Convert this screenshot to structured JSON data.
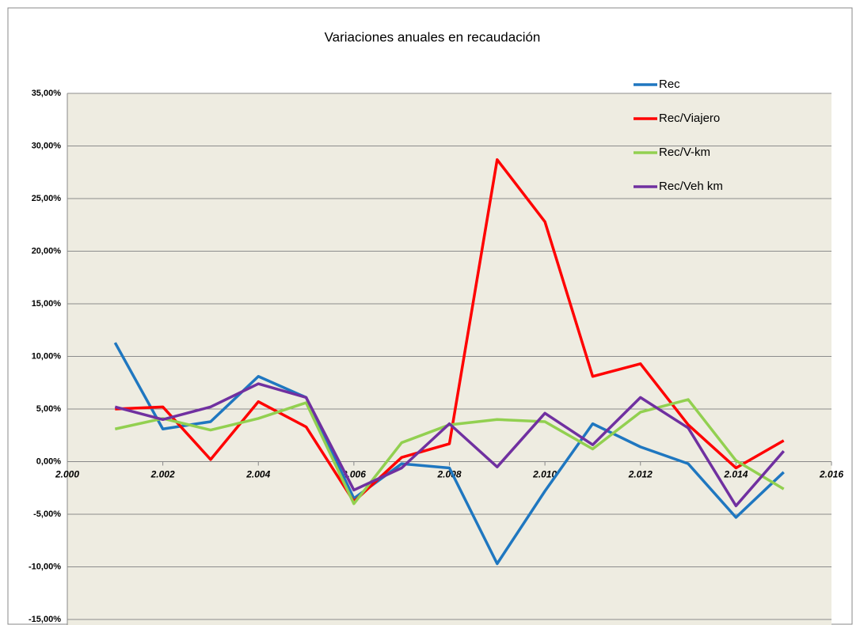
{
  "chart_data": {
    "type": "line",
    "title": "Variaciones anuales en recaudación",
    "x": [
      2001,
      2002,
      2003,
      2004,
      2005,
      2006,
      2007,
      2008,
      2009,
      2010,
      2011,
      2012,
      2013,
      2014,
      2015
    ],
    "series": [
      {
        "name": "Rec",
        "color": "#1f77c0",
        "values": [
          11.3,
          3.1,
          3.8,
          8.1,
          6.1,
          -3.5,
          -0.2,
          -0.6,
          -9.7,
          -2.8,
          3.6,
          1.4,
          -0.2,
          -5.3,
          -1.0
        ]
      },
      {
        "name": "Rec/Viajero",
        "color": "#ff0000",
        "values": [
          5.0,
          5.2,
          0.2,
          5.7,
          3.3,
          -3.8,
          0.4,
          1.7,
          28.7,
          22.8,
          8.1,
          9.3,
          3.5,
          -0.6,
          2.0
        ]
      },
      {
        "name": "Rec/V-km",
        "color": "#92d050",
        "values": [
          3.1,
          4.1,
          3.0,
          4.1,
          5.6,
          -4.0,
          1.8,
          3.5,
          4.0,
          3.8,
          1.2,
          4.7,
          5.9,
          0.1,
          -2.6
        ]
      },
      {
        "name": "Rec/Veh km",
        "color": "#7030a0",
        "values": [
          5.2,
          4.0,
          5.2,
          7.4,
          6.1,
          -2.7,
          -0.6,
          3.6,
          -0.5,
          4.6,
          1.6,
          6.1,
          3.2,
          -4.2,
          1.0
        ]
      }
    ],
    "xlim": [
      2000,
      2016
    ],
    "xticks": [
      {
        "value": 2000,
        "label": "2.000"
      },
      {
        "value": 2002,
        "label": "2.002"
      },
      {
        "value": 2004,
        "label": "2.004"
      },
      {
        "value": 2006,
        "label": "2.006"
      },
      {
        "value": 2008,
        "label": "2.008"
      },
      {
        "value": 2010,
        "label": "2.010"
      },
      {
        "value": 2012,
        "label": "2.012"
      },
      {
        "value": 2014,
        "label": "2.014"
      },
      {
        "value": 2016,
        "label": "2.016"
      }
    ],
    "ylim": [
      -15,
      35
    ],
    "yticks": [
      {
        "value": -15,
        "label": "-15,00%"
      },
      {
        "value": -10,
        "label": "-10,00%"
      },
      {
        "value": -5,
        "label": "-5,00%"
      },
      {
        "value": 0,
        "label": "0,00%"
      },
      {
        "value": 5,
        "label": "5,00%"
      },
      {
        "value": 10,
        "label": "10,00%"
      },
      {
        "value": 15,
        "label": "15,00%"
      },
      {
        "value": 20,
        "label": "20,00%"
      },
      {
        "value": 25,
        "label": "25,00%"
      },
      {
        "value": 30,
        "label": "30,00%"
      },
      {
        "value": 35,
        "label": "35,00%"
      }
    ],
    "grid": true,
    "legend": "top-right"
  }
}
